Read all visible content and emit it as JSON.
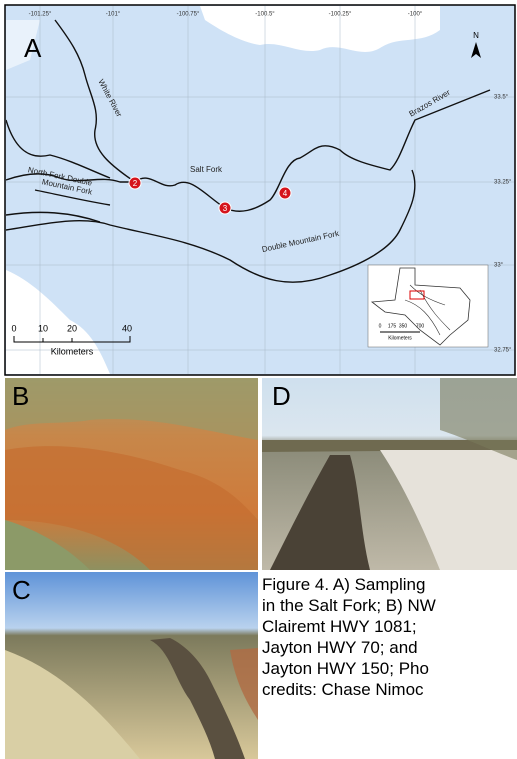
{
  "panels": {
    "a": "A",
    "b": "B",
    "c": "C",
    "d": "D"
  },
  "map": {
    "north": "N",
    "lon_ticks": [
      "-101.25°",
      "-101°",
      "-100.75°",
      "-100.5°",
      "-100.25°",
      "-100°"
    ],
    "lat_ticks": [
      "33.5°",
      "33.25°",
      "33°",
      "32.75°"
    ],
    "rivers": {
      "white": "White River",
      "brazos": "Brazos River",
      "salt": "Salt Fork",
      "north_fork": [
        "North Fork Double",
        "Mountain Fork"
      ],
      "double": "Double Mountain Fork"
    },
    "sites": [
      "2",
      "3",
      "4"
    ],
    "scale": {
      "ticks": [
        "0",
        "10",
        "20",
        "40"
      ],
      "unit": "Kilometers"
    },
    "inset_scale": {
      "ticks": [
        "0",
        "175",
        "350",
        "700"
      ],
      "unit": "Kilometers"
    }
  },
  "caption": {
    "lines": [
      "Figure 4. A) Sampling",
      "in the Salt Fork; B) NW",
      "Clairemt HWY 1081;",
      "Jayton HWY 70; and",
      "Jayton HWY 150; Pho",
      "credits: Chase Nimoc"
    ]
  }
}
